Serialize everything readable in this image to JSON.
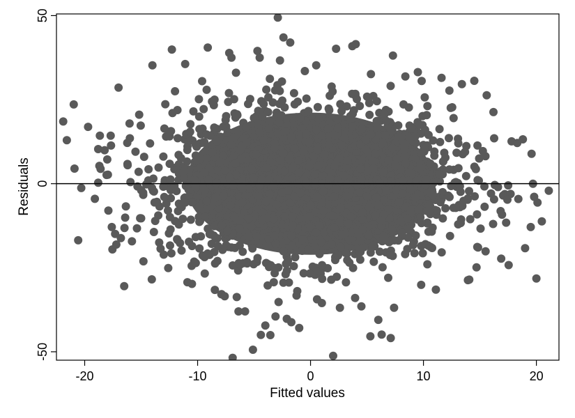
{
  "chart_data": {
    "type": "scatter",
    "xlabel": "Fitted values",
    "ylabel": "Residuals",
    "xlim": [
      -22.5,
      22
    ],
    "ylim": [
      -52.5,
      50.5
    ],
    "x_ticks": [
      -20,
      -10,
      0,
      10,
      20
    ],
    "y_ticks": [
      -50,
      0,
      50
    ],
    "x_tick_labels": [
      "-20",
      "-10",
      "0",
      "10",
      "20"
    ],
    "y_tick_labels": [
      "-50",
      "0",
      "50"
    ],
    "reference_line_y": 0,
    "grid": false,
    "legend": "none",
    "marker_color": "#595959",
    "dense_region": {
      "shape": "ellipse",
      "x_center": 0,
      "y_center": 0,
      "x_halfwidth": 12,
      "y_halfwidth": 23
    },
    "series": [
      {
        "values": [
          [
            -21.9,
            18.5
          ],
          [
            -20.3,
            -1.3
          ],
          [
            -19.7,
            16.9
          ],
          [
            -18.8,
            10.3
          ],
          [
            -18.7,
            5.3
          ],
          [
            -18.8,
            0.3
          ],
          [
            -17.9,
            -8.0
          ],
          [
            -17.6,
            -12.9
          ],
          [
            -17.7,
            14.3
          ],
          [
            -17.0,
            28.6
          ],
          [
            -16.8,
            -16.2
          ],
          [
            -17.2,
            -18.1
          ],
          [
            -16.5,
            -30.5
          ],
          [
            -16.0,
            13.5
          ],
          [
            -16.2,
            5.5
          ],
          [
            -15.5,
            9.5
          ],
          [
            -15.0,
            -10.3
          ],
          [
            -14.8,
            -23.1
          ],
          [
            -14.0,
            35.2
          ],
          [
            -13.4,
            -17.5
          ],
          [
            -13.0,
            -21.1
          ],
          [
            -12.6,
            -25.1
          ],
          [
            -12.0,
            27.5
          ],
          [
            -11.1,
            35.6
          ],
          [
            -10.9,
            -29.3
          ],
          [
            -10.5,
            -29.8
          ],
          [
            -9.6,
            30.5
          ],
          [
            -9.1,
            40.5
          ],
          [
            -8.5,
            25.0
          ],
          [
            -7.9,
            -32.9
          ],
          [
            -7.6,
            -33.5
          ],
          [
            -7.2,
            38.9
          ],
          [
            -7.0,
            37.5
          ],
          [
            -6.9,
            -51.8
          ],
          [
            -6.6,
            33.0
          ],
          [
            -5.8,
            -38.0
          ],
          [
            -5.1,
            -49.4
          ],
          [
            -4.7,
            39.5
          ],
          [
            -4.5,
            37.5
          ],
          [
            -4.4,
            -45.0
          ],
          [
            -4.0,
            -42.2
          ],
          [
            -3.6,
            31.2
          ],
          [
            -3.1,
            -39.5
          ],
          [
            -2.9,
            49.4
          ],
          [
            -2.4,
            43.5
          ],
          [
            -2.1,
            -40.2
          ],
          [
            -1.8,
            42.0
          ],
          [
            -1.7,
            -41.2
          ],
          [
            -1.0,
            -42.9
          ],
          [
            -0.5,
            33.5
          ],
          [
            0.5,
            35.2
          ],
          [
            1.0,
            -35.5
          ],
          [
            2.0,
            -51.2
          ],
          [
            2.6,
            -36.9
          ],
          [
            3.7,
            40.9
          ],
          [
            4.0,
            41.5
          ],
          [
            4.5,
            -36.5
          ],
          [
            5.3,
            -45.4
          ],
          [
            6.0,
            -40.5
          ],
          [
            6.3,
            -44.9
          ],
          [
            7.1,
            -45.9
          ],
          [
            7.3,
            38.1
          ],
          [
            7.4,
            -36.9
          ],
          [
            8.4,
            31.9
          ],
          [
            9.5,
            33.2
          ],
          [
            9.8,
            -30.1
          ],
          [
            11.1,
            -31.5
          ],
          [
            11.6,
            31.5
          ],
          [
            12.3,
            27.7
          ],
          [
            13.4,
            29.6
          ],
          [
            14.5,
            30.6
          ],
          [
            14.7,
            -24.9
          ],
          [
            15.5,
            -20.1
          ],
          [
            15.6,
            26.3
          ],
          [
            16.2,
            21.3
          ],
          [
            16.6,
            -1.0
          ],
          [
            17.5,
            -0.5
          ],
          [
            17.8,
            12.6
          ],
          [
            18.3,
            12.1
          ],
          [
            18.8,
            13.2
          ],
          [
            19.0,
            -19.2
          ],
          [
            19.5,
            -12.9
          ],
          [
            19.7,
            0.0
          ],
          [
            19.8,
            -3.9
          ],
          [
            20.1,
            -5.6
          ],
          [
            20.0,
            -28.2
          ],
          [
            21.1,
            -2.1
          ],
          [
            -20.9,
            4.5
          ],
          [
            -19.1,
            -4.5
          ],
          [
            -18.0,
            7.2
          ]
        ]
      }
    ]
  }
}
